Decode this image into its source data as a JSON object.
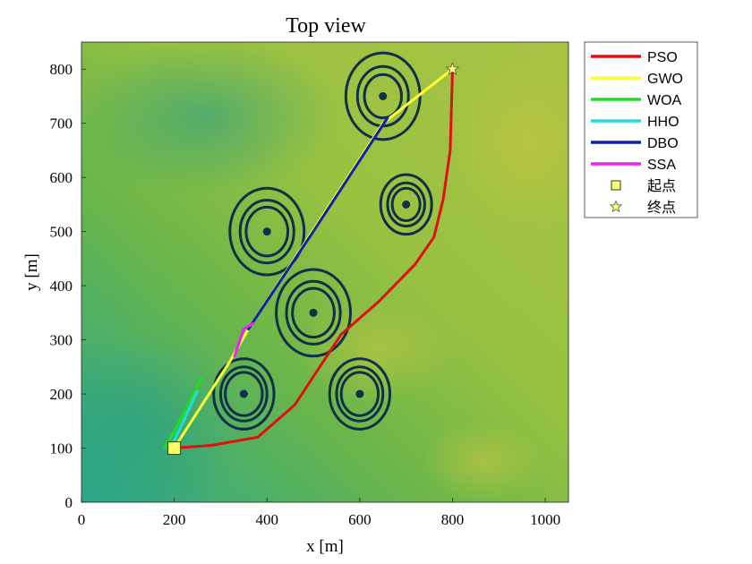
{
  "chart_data": {
    "type": "line",
    "title": "Top view",
    "xlabel": "x [m]",
    "ylabel": "y [m]",
    "xlim": [
      0,
      1050
    ],
    "ylim": [
      0,
      850
    ],
    "xticks": [
      0,
      200,
      400,
      600,
      800,
      1000
    ],
    "yticks": [
      0,
      100,
      200,
      300,
      400,
      500,
      600,
      700,
      800
    ],
    "grid": false,
    "legend_position": "outside-top-right",
    "background": "terrain elevation map",
    "series": [
      {
        "name": "PSO",
        "color": "#e01010",
        "points": [
          [
            200,
            100
          ],
          [
            280,
            105
          ],
          [
            380,
            120
          ],
          [
            460,
            180
          ],
          [
            560,
            310
          ],
          [
            640,
            370
          ],
          [
            720,
            440
          ],
          [
            760,
            490
          ],
          [
            780,
            560
          ],
          [
            795,
            650
          ],
          [
            800,
            800
          ]
        ]
      },
      {
        "name": "GWO",
        "color": "#ffff33",
        "points": [
          [
            200,
            100
          ],
          [
            320,
            260
          ],
          [
            360,
            320
          ],
          [
            650,
            700
          ],
          [
            800,
            800
          ]
        ]
      },
      {
        "name": "WOA",
        "color": "#22dd22",
        "points": [
          [
            180,
            100
          ],
          [
            200,
            130
          ],
          [
            230,
            180
          ],
          [
            260,
            230
          ]
        ]
      },
      {
        "name": "HHO",
        "color": "#22dddd",
        "points": [
          [
            190,
            95
          ],
          [
            220,
            150
          ],
          [
            250,
            205
          ]
        ]
      },
      {
        "name": "DBO",
        "color": "#1020b0",
        "points": [
          [
            360,
            320
          ],
          [
            500,
            500
          ],
          [
            660,
            710
          ]
        ]
      },
      {
        "name": "SSA",
        "color": "#ee22ee",
        "points": [
          [
            330,
            270
          ],
          [
            350,
            320
          ],
          [
            370,
            330
          ]
        ]
      }
    ],
    "obstacles": [
      {
        "x": 650,
        "y": 750,
        "radii": [
          40,
          55,
          80
        ]
      },
      {
        "x": 700,
        "y": 550,
        "radii": [
          30,
          40,
          55
        ]
      },
      {
        "x": 400,
        "y": 500,
        "radii": [
          45,
          58,
          80
        ]
      },
      {
        "x": 500,
        "y": 350,
        "radii": [
          45,
          58,
          80
        ]
      },
      {
        "x": 350,
        "y": 200,
        "radii": [
          40,
          50,
          65
        ]
      },
      {
        "x": 600,
        "y": 200,
        "radii": [
          40,
          50,
          65
        ]
      }
    ],
    "obstacle_color": "#10304a",
    "start": {
      "name": "起点",
      "x": 200,
      "y": 100,
      "marker": "square",
      "color": "#ffff66"
    },
    "goal": {
      "name": "终点",
      "x": 800,
      "y": 800,
      "marker": "star",
      "color": "#ffff66"
    }
  }
}
